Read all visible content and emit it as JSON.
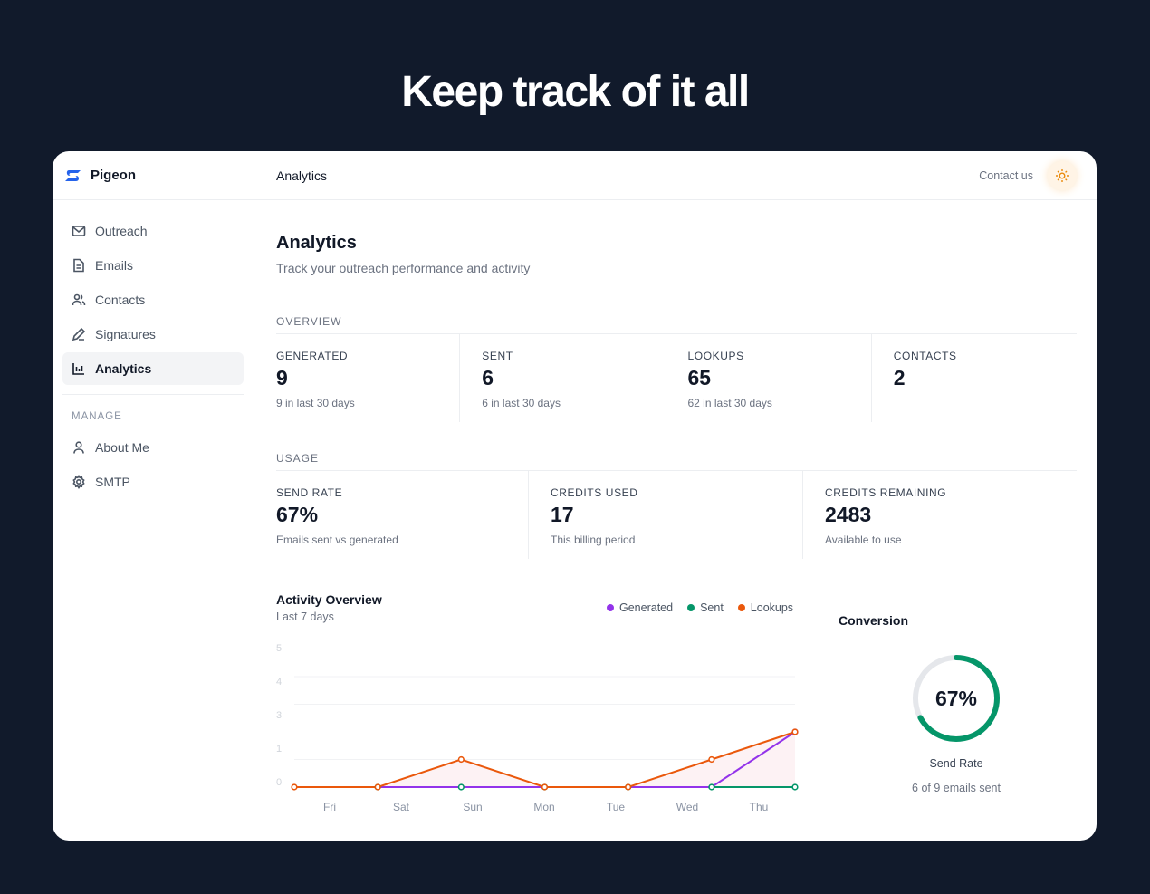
{
  "hero": {
    "title": "Keep track of it all"
  },
  "brand": {
    "name": "Pigeon"
  },
  "sidebar": {
    "items": [
      {
        "label": "Outreach",
        "icon": "mail-icon"
      },
      {
        "label": "Emails",
        "icon": "file-icon"
      },
      {
        "label": "Contacts",
        "icon": "users-icon"
      },
      {
        "label": "Signatures",
        "icon": "pen-icon"
      },
      {
        "label": "Analytics",
        "icon": "bar-chart-icon",
        "active": true
      }
    ],
    "section": "MANAGE",
    "manage": [
      {
        "label": "About Me",
        "icon": "user-icon"
      },
      {
        "label": "SMTP",
        "icon": "gear-icon"
      }
    ]
  },
  "header": {
    "title": "Analytics",
    "contact": "Contact us",
    "theme_icon": "sun-icon"
  },
  "page": {
    "title": "Analytics",
    "subtitle": "Track your outreach performance and activity"
  },
  "overview": {
    "label": "OVERVIEW",
    "cards": [
      {
        "k": "GENERATED",
        "v": "9",
        "s": "9 in last 30 days"
      },
      {
        "k": "SENT",
        "v": "6",
        "s": "6 in last 30 days"
      },
      {
        "k": "LOOKUPS",
        "v": "65",
        "s": "62 in last 30 days"
      },
      {
        "k": "CONTACTS",
        "v": "2",
        "s": ""
      }
    ]
  },
  "usage": {
    "label": "USAGE",
    "cards": [
      {
        "k": "SEND RATE",
        "v": "67%",
        "s": "Emails sent vs generated"
      },
      {
        "k": "CREDITS USED",
        "v": "17",
        "s": "This billing period"
      },
      {
        "k": "CREDITS REMAINING",
        "v": "2483",
        "s": "Available to use"
      }
    ]
  },
  "chart_data": {
    "type": "line",
    "title": "Activity Overview",
    "subtitle": "Last 7 days",
    "categories": [
      "Fri",
      "Sat",
      "Sun",
      "Mon",
      "Tue",
      "Wed",
      "Thu"
    ],
    "y_tick_labels": [
      "5",
      "4",
      "3",
      "1",
      "0"
    ],
    "ylim": [
      0,
      5
    ],
    "grid": true,
    "legend": "top-right",
    "series": [
      {
        "name": "Generated",
        "color": "#9333ea",
        "values": [
          0,
          0,
          0,
          0,
          0,
          0,
          2
        ]
      },
      {
        "name": "Sent",
        "color": "#059669",
        "values": [
          0,
          0,
          0,
          0,
          0,
          0,
          0
        ]
      },
      {
        "name": "Lookups",
        "color": "#ea580c",
        "values": [
          0,
          0,
          1,
          0,
          0,
          1,
          2
        ]
      }
    ]
  },
  "conversion": {
    "title": "Conversion",
    "value": "67%",
    "percent": 67,
    "label": "Send Rate",
    "detail": "6 of 9 emails sent",
    "color": "#059669"
  }
}
